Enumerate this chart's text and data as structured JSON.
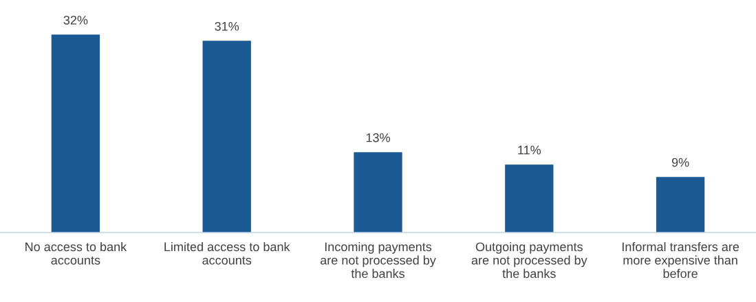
{
  "chart_data": {
    "type": "bar",
    "categories": [
      "No access to bank\naccounts",
      "Limited access to bank\naccounts",
      "Incoming payments\nare not processed by\nthe banks",
      "Outgoing payments\nare not processed by\nthe banks",
      "Informal transfers are\nmore expensive than\nbefore"
    ],
    "values": [
      32,
      31,
      13,
      11,
      9
    ],
    "value_labels": [
      "32%",
      "31%",
      "13%",
      "11%",
      "9%"
    ],
    "color": "#1c5a96",
    "grid": false,
    "legend": false
  }
}
